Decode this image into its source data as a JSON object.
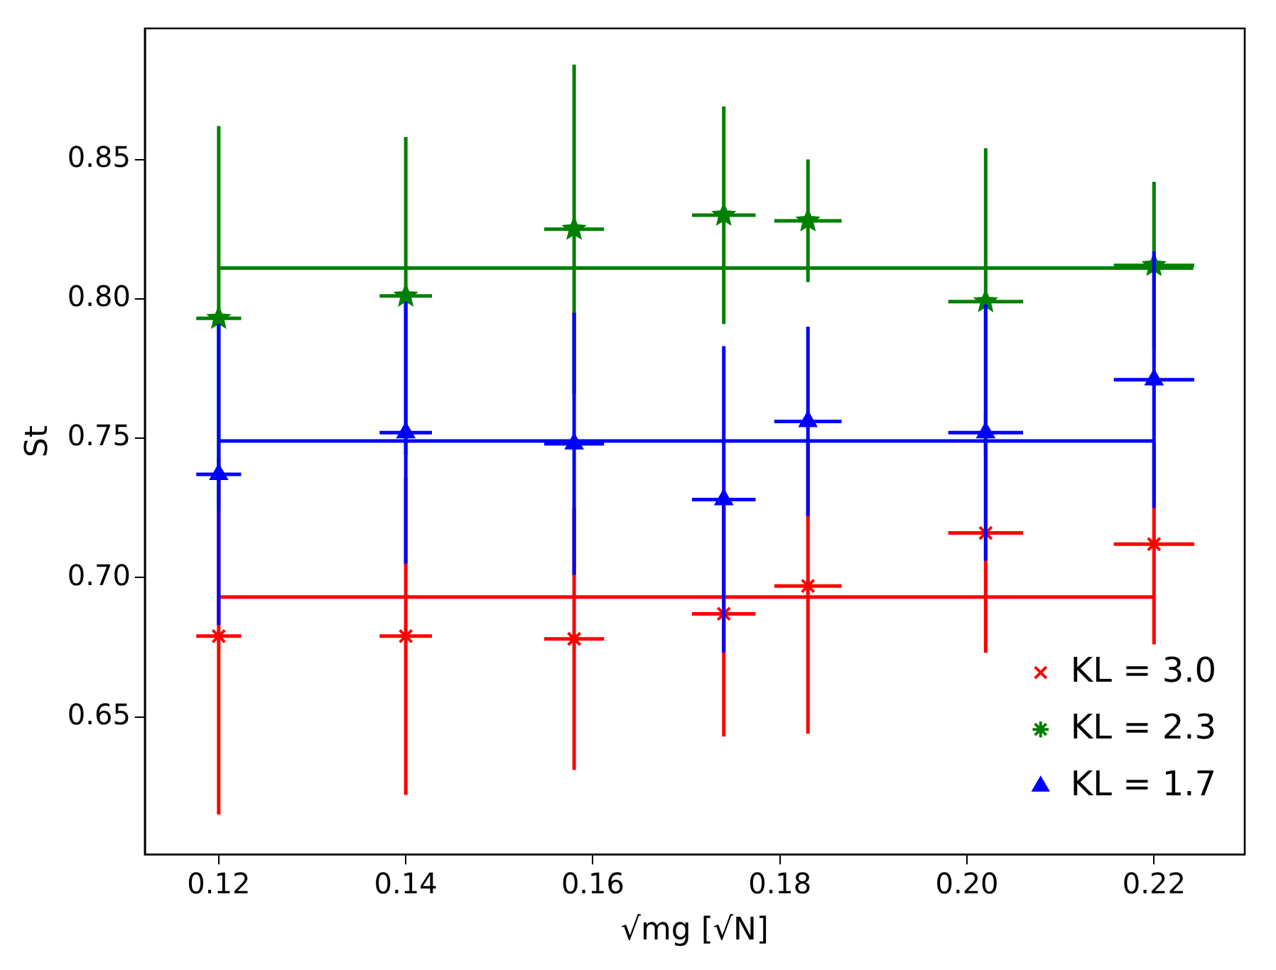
{
  "chart_data": {
    "type": "scatter",
    "xlabel": "√mg [√N]",
    "ylabel": "St",
    "xlim": [
      0.1121,
      0.2297
    ],
    "ylim": [
      0.6007,
      0.897
    ],
    "xticks": [
      0.12,
      0.14,
      0.16,
      0.18,
      {
        "value": 0.2,
        "label": "0.20"
      },
      0.22
    ],
    "yticks": [
      0.65,
      {
        "value": 0.7,
        "label": "0.70"
      },
      0.75,
      {
        "value": 0.8,
        "label": "0.80"
      },
      0.85
    ],
    "grid": false,
    "legend": "bottom right",
    "series": [
      {
        "name": "KL = 3.0",
        "type": "scatter",
        "marker": "cross",
        "color": "#ff0000",
        "x": [
          0.12,
          0.14,
          0.158,
          0.174,
          0.183,
          0.202,
          0.22
        ],
        "values": [
          0.679,
          0.679,
          0.678,
          0.687,
          0.697,
          0.716,
          0.712
        ],
        "errors": [
          0.064,
          0.057,
          0.047,
          0.044,
          0.053,
          0.043,
          0.036
        ],
        "xerrors": [
          0.0024,
          0.0028,
          0.0032,
          0.0034,
          0.0036,
          0.004,
          0.0043
        ]
      },
      {
        "type": "line",
        "marker": "none",
        "color": "#ff0000",
        "x": [
          0.12,
          0.22
        ],
        "values": [
          0.693,
          0.693
        ]
      },
      {
        "name": "KL = 2.3",
        "type": "scatter",
        "marker": "star",
        "color": "#008000",
        "x": [
          0.12,
          0.14,
          0.158,
          0.174,
          0.183,
          0.202,
          0.22
        ],
        "values": [
          0.793,
          0.801,
          0.825,
          0.83,
          0.828,
          0.799,
          0.812
        ],
        "errors": [
          0.069,
          0.057,
          0.059,
          0.039,
          0.022,
          0.055,
          0.03
        ],
        "xerrors": [
          0.0024,
          0.0028,
          0.0032,
          0.0034,
          0.0036,
          0.004,
          0.0043
        ]
      },
      {
        "type": "line",
        "marker": "none",
        "color": "#008000",
        "x": [
          0.12,
          0.2242
        ],
        "values": [
          0.811,
          0.811
        ]
      },
      {
        "name": "KL = 1.7",
        "type": "scatter",
        "marker": "triangle",
        "color": "#0000ff",
        "x": [
          0.12,
          0.14,
          0.158,
          0.174,
          0.183,
          0.202,
          0.22
        ],
        "values": [
          0.737,
          0.752,
          0.748,
          0.728,
          0.756,
          0.752,
          0.771
        ],
        "errors": [
          0.054,
          0.047,
          0.047,
          0.055,
          0.034,
          0.046,
          0.046
        ],
        "xerrors": [
          0.0024,
          0.0028,
          0.0032,
          0.0034,
          0.0036,
          0.004,
          0.0043
        ]
      },
      {
        "type": "line",
        "marker": "none",
        "color": "#0000ff",
        "x": [
          0.12,
          0.22
        ],
        "values": [
          0.749,
          0.749
        ]
      }
    ]
  }
}
